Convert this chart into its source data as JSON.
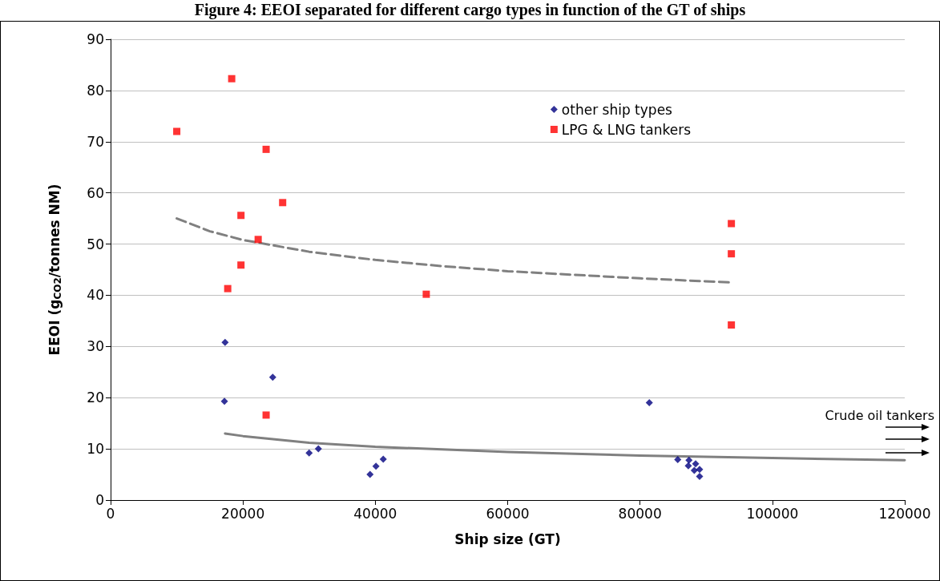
{
  "chart_data": {
    "type": "scatter",
    "title": "Figure 4: EEOI separated for different cargo types in function of the GT of ships",
    "xlabel": "Ship size (GT)",
    "ylabel": "EEOI (g$_{CO2}$/tonnes NM)",
    "xlim": [
      0,
      120000
    ],
    "xticks": [
      0,
      20000,
      40000,
      60000,
      80000,
      100000,
      120000
    ],
    "ylim": [
      0,
      90
    ],
    "yticks": [
      0,
      10,
      20,
      30,
      40,
      50,
      60,
      70,
      80,
      90
    ],
    "grid": "y",
    "legend": "top right",
    "annotations": [
      "Crude oil tankers"
    ],
    "series": [
      {
        "name": "other ship types",
        "type": "scatter",
        "marker": "diamond",
        "color": "#000080",
        "x": [
          17300,
          17200,
          24500,
          30000,
          31400,
          39200,
          40100,
          41200,
          81400,
          85700,
          87400,
          87300,
          88400,
          88200,
          89000,
          89000
        ],
        "values": [
          30.8,
          19.3,
          24.0,
          9.2,
          10.0,
          5.0,
          6.6,
          8.0,
          19.0,
          7.9,
          7.8,
          6.7,
          7.1,
          5.8,
          6.0,
          4.6
        ]
      },
      {
        "name": "LPG & LNG tankers",
        "type": "scatter",
        "marker": "square",
        "color": "#ff0000",
        "x": [
          10000,
          18300,
          23500,
          26000,
          19700,
          22300,
          19700,
          17700,
          47700,
          23500,
          93800,
          93800,
          93800
        ],
        "values": [
          72.0,
          82.3,
          68.5,
          58.1,
          55.6,
          50.9,
          45.9,
          41.3,
          40.2,
          16.6,
          54.0,
          48.1,
          34.2
        ]
      },
      {
        "type": "line",
        "marker": "none",
        "line_style": "dashed",
        "color": "#808080",
        "x": [
          10000,
          15000,
          20000,
          30000,
          40000,
          50000,
          60000,
          70000,
          80000,
          93800
        ],
        "values": [
          55.0,
          52.5,
          50.8,
          48.5,
          46.9,
          45.7,
          44.7,
          44.0,
          43.3,
          42.5
        ]
      },
      {
        "type": "line",
        "marker": "none",
        "line_style": "solid",
        "color": "#808080",
        "x": [
          17300,
          20000,
          30000,
          40000,
          60000,
          80000,
          100000,
          120000
        ],
        "values": [
          13.0,
          12.5,
          11.2,
          10.4,
          9.4,
          8.7,
          8.2,
          7.8
        ]
      }
    ]
  }
}
